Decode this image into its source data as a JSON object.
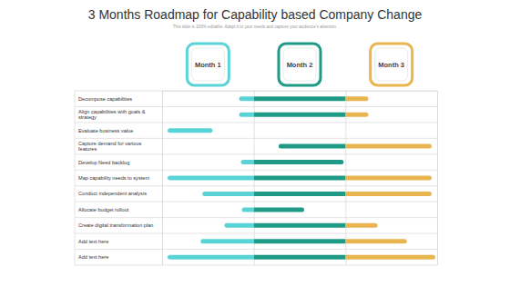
{
  "chart_data": {
    "type": "gantt",
    "title": "3 Months Roadmap for Capability based Company Change",
    "subtitle": "This slide is 100% editable. Adapt it to your needs and capture your audience's attention.",
    "periods": [
      "Month 1",
      "Month 2",
      "Month 3"
    ],
    "colors": [
      "#5ad3d6",
      "#1f9a86",
      "#e8b550"
    ],
    "categories": [
      "Decompose capabilities",
      "Align capabilities with goals & strategy",
      "Evaluate business value",
      "Capture demand for various features",
      "Develop Need backlog",
      "Map capability needs to system",
      "Conduct independent analysis",
      "Allocate budget rollout",
      "Create digital transformation plan",
      "Add text here",
      "Add text here"
    ],
    "start": [
      0.84,
      0.84,
      0.06,
      1.27,
      0.86,
      0.06,
      0.44,
      0.87,
      0.68,
      0.42,
      0.06
    ],
    "end": [
      2.25,
      2.25,
      0.55,
      2.94,
      1.98,
      2.94,
      2.94,
      1.55,
      2.35,
      2.67,
      2.98
    ],
    "orientation": "horizontal",
    "xlim": [
      0,
      3
    ],
    "xticks": [
      0,
      1,
      2,
      3
    ],
    "grid": true,
    "tick_labels": false
  }
}
